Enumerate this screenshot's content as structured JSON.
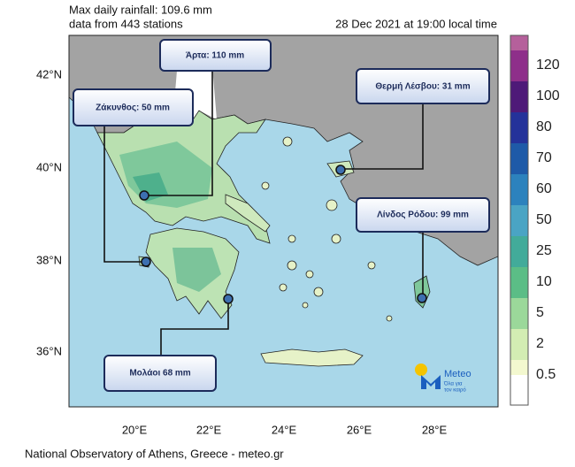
{
  "header": {
    "line1": "Max daily rainfall: 109.6 mm",
    "line2": "data from 443 stations",
    "timestamp": "28 Dec 2021 at 19:00 local time"
  },
  "map": {
    "lat_labels": [
      "42°N",
      "40°N",
      "38°N",
      "36°N"
    ],
    "lon_labels": [
      "20°E",
      "22°E",
      "24°E",
      "26°E",
      "28°E"
    ]
  },
  "callouts": [
    "Άρτα: 110 mm",
    "Ζάκυνθος: 50 mm",
    "Θερμή Λέσβου: 31 mm",
    "Λίνδος Ρόδου: 99 mm",
    "Μολάοι 68 mm"
  ],
  "legend": {
    "labels": [
      "120",
      "100",
      "80",
      "70",
      "60",
      "50",
      "25",
      "10",
      "5",
      "2",
      "0.5"
    ]
  },
  "logo": {
    "name": "Meteo",
    "tagline_line1": "Όλα για",
    "tagline_line2": "τον καιρό"
  },
  "footer": "National Observatory of Athens, Greece - meteo.gr"
}
